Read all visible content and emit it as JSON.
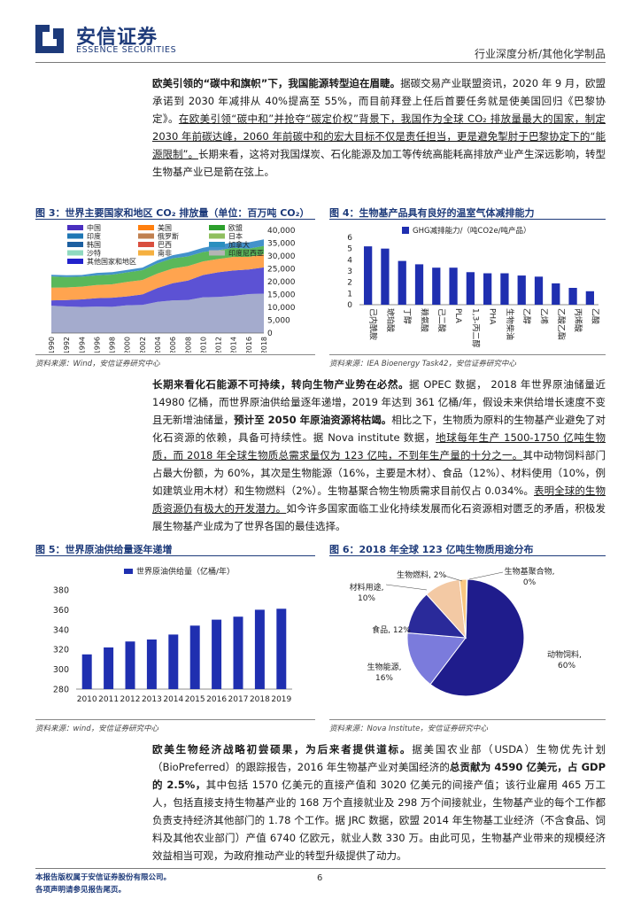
{
  "header": {
    "company_cn": "安信证券",
    "company_en": "ESSENCE SECURITIES",
    "report_type": "行业深度分析/其他化学制品"
  },
  "para1": {
    "lead": "欧美引领的“碳中和旗帜”下，我国能源转型迫在眉睫。",
    "body1": "据碳交易产业联盟资讯，2020 年 9 月，欧盟承诺到 2030 年减排从 40%提高至 55%，而目前拜登上任后首要任务就是使美国回归《巴黎协定》。",
    "body2": "在欧美引领“碳中和”并抢夺“碳定价权”背景下，我国作为全球 CO₂ 排放量最大的国家，制定 2030 年前碳达峰，2060 年前碳中和的宏大目标不仅是责任担当，更是避免掣肘于巴黎协定下的“能源限制”。",
    "body3": "长期来看，这将对我国煤炭、石化能源及加工等传统高能耗高排放产业产生深远影响，转型生物基产业已是箭在弦上。"
  },
  "fig3": {
    "title": "图 3：世界主要国家和地区 CO₂ 排放量（单位：百万吨 CO₂）",
    "source": "资料来源：Wind，安信证券研究中心"
  },
  "fig4": {
    "title": "图 4：生物基产品具有良好的温室气体减排能力",
    "source": "资料来源：IEA Bioenergy Task42，安信证券研究中心"
  },
  "para2": {
    "lead": "长期来看化石能源不可持续，转向生物产业势在必然。",
    "s1": "据 OPEC 数据， 2018 年世界原油储量近 14980 亿桶，而世界原油供给量逐年递增，2019 年达到 361 亿桶/年，假设未来供给增长速度不变且无新增油储量，",
    "s2": "预计至 2050 年原油资源将枯竭。",
    "s3": "相比之下，生物质为原料的生物基产业避免了对化石资源的依赖，具备可持续性。据 Nova institute 数据，",
    "s4": "地球每年生产 1500-1750 亿吨生物质，而 2018 年全球生物质总需求量仅为 123 亿吨，不到年生产量的十分之一。",
    "s5": "其中动物饲料部门占最大份额，为 60%，其次是生物能源（16%，主要是木材）、食品（12%）、材料使用（10%，例如建筑业用木材）和生物燃料（2%）。生物基聚合物生物质需求目前仅占 0.034%。",
    "s6": "表明全球的生物质资源仍有极大的开发潜力。",
    "s7": "如今许多国家面临工业化持续发展而化石资源相对匮乏的矛盾，积极发展生物基产业成为了世界各国的最佳选择。"
  },
  "fig5": {
    "title": "图 5：世界原油供给量逐年递增",
    "source": "资料来源：wind，安信证券研究中心"
  },
  "fig6": {
    "title": "图 6：2018 年全球 123 亿吨生物质用途分布",
    "source": "资料来源：Nova Institute，安信证券研究中心"
  },
  "para3": {
    "lead": "欧美生物经济战略初尝硕果，为后来者提供道标。",
    "s1": "据美国农业部（USDA）生物优先计划（BioPreferred）的跟踪报告，2016 年生物基产业对美国经济的",
    "s2": "总贡献为 4590 亿美元，占 GDP 的 2.5%，",
    "s3": "其中包括 1570 亿美元的直接产值和 3020 亿美元的间接产值；该行业雇用 465 万工人，包括直接支持生物基产业的 168 万个直接就业及 298 万个间接就业，生物基产业的每个工作都负责支持经济其他部门的 1.78 个工作。据 JRC 数据，欧盟 2014 年生物基工业经济（不含食品、饲料及其他农业部门）产值 6740 亿欧元，就业人数 330 万。由此可见，生物基产业带来的规模经济效益相当可观，为政府推动产业的转型升级提供了动力。"
  },
  "footer": {
    "note1": "本报告版权属于安信证券股份有限公司。",
    "note2": "各项声明请参见报告尾页。",
    "page": "6"
  },
  "chart_data": [
    {
      "type": "area",
      "title": "图 3：世界主要国家和地区 CO₂ 排放量（单位：百万吨 CO₂）",
      "legend": [
        "中国",
        "美国",
        "欧盟",
        "印度",
        "俄罗斯",
        "日本",
        "韩国",
        "巴西",
        "加拿大",
        "沙特",
        "南非",
        "印度尼西亚",
        "其他国家和地区"
      ],
      "colors": [
        "#4a2fbf",
        "#ff7f0e",
        "#2ca02c",
        "#1f77b4",
        "#c08050",
        "#8fbf5f",
        "#1c5fa0",
        "#d94f3f",
        "#2a8fbf",
        "#8fd9c0",
        "#f5b040",
        "#b4b4b4",
        "#2222cc"
      ],
      "x": [
        1990,
        1992,
        1994,
        1996,
        1998,
        2000,
        2002,
        2004,
        2006,
        2008,
        2010,
        2012,
        2014,
        2016,
        2018
      ],
      "ylim": [
        0,
        40000
      ],
      "yticks": [
        0,
        5000,
        10000,
        15000,
        20000,
        25000,
        30000,
        35000,
        40000
      ],
      "ytick_labels": [
        "0",
        "5,000",
        "10,000",
        "15,000",
        "20,000",
        "25,000",
        "30,000",
        "35,000",
        "40,000"
      ],
      "total": [
        22700,
        22500,
        22600,
        23400,
        23700,
        24600,
        25500,
        28300,
        30300,
        31400,
        33200,
        34300,
        35300,
        35300,
        36500
      ]
    },
    {
      "type": "bar",
      "title": "图 4：生物基产品具有良好的温室气体减排能力",
      "series": [
        {
          "name": "GHG减排能力/（吨CO2e/吨产品）",
          "color": "#1f2fb0"
        }
      ],
      "categories": [
        "己内酰胺",
        "琥珀酸",
        "丁醇",
        "赖氨酸",
        "己二酸",
        "PLA",
        "1,3-丙二醇",
        "PHA",
        "生物柴油",
        "乙醇",
        "乙烯",
        "乙酸乙酯",
        "丙烯酸",
        "乙酸"
      ],
      "values": [
        5.2,
        5.0,
        3.9,
        3.6,
        3.3,
        3.3,
        2.9,
        2.8,
        2.8,
        2.6,
        2.5,
        1.9,
        1.5,
        1.2
      ],
      "ylim": [
        0,
        6
      ],
      "yticks": [
        0,
        1,
        2,
        3,
        4,
        5,
        6
      ]
    },
    {
      "type": "bar",
      "title": "图 5：世界原油供给量逐年递增",
      "series": [
        {
          "name": "世界原油供给量（亿桶/年）",
          "color": "#1f2fb0"
        }
      ],
      "categories": [
        "2010",
        "2011",
        "2012",
        "2013",
        "2014",
        "2015",
        "2016",
        "2017",
        "2018",
        "2019"
      ],
      "values": [
        315,
        322,
        328,
        330,
        335,
        344,
        350,
        353,
        360,
        361
      ],
      "ylim": [
        280,
        380
      ],
      "yticks": [
        280,
        300,
        320,
        340,
        360,
        380
      ]
    },
    {
      "type": "pie",
      "title": "图 6：2018 年全球 123 亿吨生物质用途分布",
      "labels": [
        "动物饲料",
        "生物能源",
        "食品",
        "材料用途",
        "生物燃料",
        "生物基聚合物"
      ],
      "values": [
        60,
        16,
        12,
        10,
        2,
        0
      ],
      "display": [
        "动物饲料,",
        "生物能源,",
        "食品, 12%",
        "材料用途,",
        "生物燃料, 2%",
        "生物基聚合物,"
      ],
      "display2": [
        "60%",
        "16%",
        "",
        "10%",
        "",
        "0%"
      ],
      "colors": [
        "#1f1c8c",
        "#7b7bdc",
        "#2a2a9a",
        "#f3c9a4",
        "#f9c780",
        "#e6e6ff"
      ]
    }
  ]
}
